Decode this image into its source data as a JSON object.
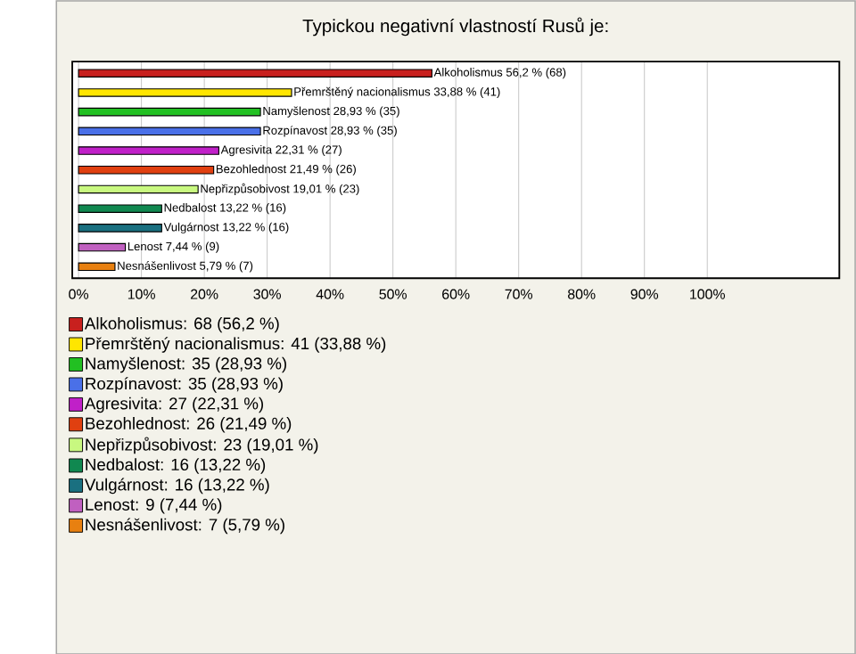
{
  "chart_data": {
    "type": "bar",
    "orientation": "horizontal",
    "title": "Typickou negativní vlastností Rusů je:",
    "categories": [
      null,
      null,
      null,
      null,
      null,
      null,
      null,
      null,
      null,
      null,
      null
    ],
    "series": [
      {
        "name": "Alkoholismus: 68 (56,2 %)",
        "color": "#c8201e",
        "values": [
          56.2,
          null,
          null,
          null,
          null,
          null,
          null,
          null,
          null,
          null,
          null
        ],
        "value_labels": [
          "Alkoholismus 56,2 % (68)",
          null,
          null,
          null,
          null,
          null,
          null,
          null,
          null,
          null,
          null
        ]
      },
      {
        "name": "Přemrštěný nacionalismus: 41 (33,88 %)",
        "color": "#ffe600",
        "values": [
          null,
          33.88,
          null,
          null,
          null,
          null,
          null,
          null,
          null,
          null,
          null
        ],
        "value_labels": [
          null,
          "Přemrštěný nacionalismus 33,88 % (41)",
          null,
          null,
          null,
          null,
          null,
          null,
          null,
          null,
          null
        ]
      },
      {
        "name": "Namyšlenost: 35 (28,93 %)",
        "color": "#22c022",
        "values": [
          null,
          null,
          28.93,
          null,
          null,
          null,
          null,
          null,
          null,
          null,
          null
        ],
        "value_labels": [
          null,
          null,
          "Namyšlenost 28,93 % (35)",
          null,
          null,
          null,
          null,
          null,
          null,
          null,
          null
        ]
      },
      {
        "name": "Rozpínavost: 35 (28,93 %)",
        "color": "#4a70e8",
        "values": [
          null,
          null,
          null,
          28.93,
          null,
          null,
          null,
          null,
          null,
          null,
          null
        ],
        "value_labels": [
          null,
          null,
          null,
          "Rozpínavost 28,93 % (35)",
          null,
          null,
          null,
          null,
          null,
          null,
          null
        ]
      },
      {
        "name": "Agresivita: 27 (22,31 %)",
        "color": "#c020c8",
        "values": [
          null,
          null,
          null,
          null,
          22.31,
          null,
          null,
          null,
          null,
          null,
          null
        ],
        "value_labels": [
          null,
          null,
          null,
          null,
          "Agresivita 22,31 % (27)",
          null,
          null,
          null,
          null,
          null,
          null
        ]
      },
      {
        "name": "Bezohlednost: 26 (21,49 %)",
        "color": "#e04010",
        "values": [
          null,
          null,
          null,
          null,
          null,
          21.49,
          null,
          null,
          null,
          null,
          null
        ],
        "value_labels": [
          null,
          null,
          null,
          null,
          null,
          "Bezohlednost 21,49 % (26)",
          null,
          null,
          null,
          null,
          null
        ]
      },
      {
        "name": "Nepřizpůsobivost: 23 (19,01 %)",
        "color": "#c8f880",
        "values": [
          null,
          null,
          null,
          null,
          null,
          null,
          19.01,
          null,
          null,
          null,
          null
        ],
        "value_labels": [
          null,
          null,
          null,
          null,
          null,
          null,
          "Nepřizpůsobivost 19,01 % (23)",
          null,
          null,
          null,
          null
        ]
      },
      {
        "name": "Nedbalost: 16 (13,22 %)",
        "color": "#108850",
        "values": [
          null,
          null,
          null,
          null,
          null,
          null,
          null,
          13.22,
          null,
          null,
          null
        ],
        "value_labels": [
          null,
          null,
          null,
          null,
          null,
          null,
          null,
          "Nedbalost 13,22 % (16)",
          null,
          null,
          null
        ]
      },
      {
        "name": "Vulgárnost: 16 (13,22 %)",
        "color": "#1a7080",
        "values": [
          null,
          null,
          null,
          null,
          null,
          null,
          null,
          null,
          13.22,
          null,
          null
        ],
        "value_labels": [
          null,
          null,
          null,
          null,
          null,
          null,
          null,
          null,
          "Vulgárnost 13,22 % (16)",
          null,
          null
        ]
      },
      {
        "name": "Lenost: 9 (7,44 %)",
        "color": "#c060c0",
        "values": [
          null,
          null,
          null,
          null,
          null,
          null,
          null,
          null,
          null,
          7.44,
          null
        ],
        "value_labels": [
          null,
          null,
          null,
          null,
          null,
          null,
          null,
          null,
          null,
          "Lenost 7,44 % (9)",
          null
        ]
      },
      {
        "name": "Nesnášenlivost: 7 (5,79 %)",
        "color": "#e88010",
        "values": [
          null,
          null,
          null,
          null,
          null,
          null,
          null,
          null,
          null,
          null,
          5.79
        ],
        "value_labels": [
          null,
          null,
          null,
          null,
          null,
          null,
          null,
          null,
          null,
          null,
          "Nesnášenlivost 5,79 % (7)"
        ]
      }
    ],
    "xlim": [
      -1,
      121
    ],
    "xticks": [
      {
        "value": 0,
        "label": "0%"
      },
      {
        "value": 10,
        "label": "10%"
      },
      {
        "value": 20,
        "label": "20%"
      },
      {
        "value": 30,
        "label": "30%"
      },
      {
        "value": 40,
        "label": "40%"
      },
      {
        "value": 50,
        "label": "50%"
      },
      {
        "value": 60,
        "label": "60%"
      },
      {
        "value": 70,
        "label": "70%"
      },
      {
        "value": 80,
        "label": "80%"
      },
      {
        "value": 90,
        "label": "90%"
      },
      {
        "value": 100,
        "label": "100%"
      }
    ],
    "grid": "x",
    "legend": "bottom"
  }
}
